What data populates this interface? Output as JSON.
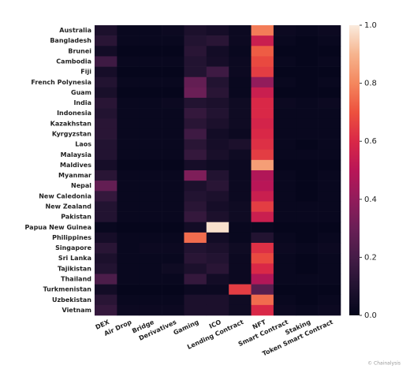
{
  "chart_data": {
    "type": "heatmap",
    "rows": [
      "Australia",
      "Bangladesh",
      "Brunei",
      "Cambodia",
      "Fiji",
      "French Polynesia",
      "Guam",
      "India",
      "Indonesia",
      "Kazakhstan",
      "Kyrgyzstan",
      "Laos",
      "Malaysia",
      "Maldives",
      "Myanmar",
      "Nepal",
      "New Caledonia",
      "New Zealand",
      "Pakistan",
      "Papua New Guinea",
      "Philippines",
      "Singapore",
      "Sri Lanka",
      "Tajikistan",
      "Thailand",
      "Turkmenistan",
      "Uzbekistan",
      "Vietnam"
    ],
    "categories": [
      "DEX",
      "Air Drop",
      "Bridge",
      "Derivatives",
      "Gaming",
      "ICO",
      "Lending Contract",
      "NFT",
      "Smart Contract",
      "Staking",
      "Token Smart Contract"
    ],
    "values": [
      [
        0.08,
        0.02,
        0.02,
        0.03,
        0.08,
        0.06,
        0.03,
        0.78,
        0.03,
        0.02,
        0.03
      ],
      [
        0.12,
        0.02,
        0.02,
        0.02,
        0.1,
        0.12,
        0.03,
        0.55,
        0.02,
        0.01,
        0.02
      ],
      [
        0.05,
        0.01,
        0.01,
        0.01,
        0.12,
        0.05,
        0.02,
        0.72,
        0.01,
        0.01,
        0.01
      ],
      [
        0.18,
        0.02,
        0.02,
        0.02,
        0.1,
        0.06,
        0.03,
        0.68,
        0.02,
        0.01,
        0.02
      ],
      [
        0.06,
        0.01,
        0.01,
        0.01,
        0.1,
        0.18,
        0.03,
        0.65,
        0.01,
        0.01,
        0.01
      ],
      [
        0.1,
        0.02,
        0.02,
        0.02,
        0.28,
        0.1,
        0.02,
        0.4,
        0.02,
        0.01,
        0.02
      ],
      [
        0.07,
        0.01,
        0.01,
        0.01,
        0.3,
        0.12,
        0.02,
        0.55,
        0.01,
        0.01,
        0.01
      ],
      [
        0.12,
        0.02,
        0.02,
        0.03,
        0.1,
        0.08,
        0.04,
        0.6,
        0.03,
        0.02,
        0.03
      ],
      [
        0.1,
        0.02,
        0.02,
        0.02,
        0.15,
        0.1,
        0.04,
        0.6,
        0.02,
        0.02,
        0.02
      ],
      [
        0.12,
        0.02,
        0.02,
        0.02,
        0.12,
        0.08,
        0.04,
        0.58,
        0.02,
        0.02,
        0.02
      ],
      [
        0.12,
        0.02,
        0.02,
        0.02,
        0.18,
        0.05,
        0.03,
        0.6,
        0.02,
        0.02,
        0.02
      ],
      [
        0.1,
        0.02,
        0.02,
        0.02,
        0.12,
        0.06,
        0.08,
        0.62,
        0.02,
        0.01,
        0.02
      ],
      [
        0.1,
        0.02,
        0.02,
        0.02,
        0.15,
        0.07,
        0.04,
        0.65,
        0.02,
        0.02,
        0.02
      ],
      [
        0.06,
        0.01,
        0.01,
        0.01,
        0.06,
        0.04,
        0.03,
        0.85,
        0.01,
        0.01,
        0.01
      ],
      [
        0.12,
        0.02,
        0.02,
        0.02,
        0.35,
        0.1,
        0.03,
        0.48,
        0.02,
        0.01,
        0.02
      ],
      [
        0.28,
        0.02,
        0.02,
        0.02,
        0.08,
        0.12,
        0.03,
        0.5,
        0.02,
        0.01,
        0.02
      ],
      [
        0.15,
        0.02,
        0.02,
        0.02,
        0.1,
        0.08,
        0.03,
        0.55,
        0.02,
        0.01,
        0.02
      ],
      [
        0.1,
        0.02,
        0.02,
        0.02,
        0.12,
        0.06,
        0.04,
        0.65,
        0.02,
        0.02,
        0.02
      ],
      [
        0.1,
        0.02,
        0.02,
        0.02,
        0.15,
        0.08,
        0.04,
        0.55,
        0.02,
        0.02,
        0.02
      ],
      [
        0.02,
        0.01,
        0.01,
        0.01,
        0.05,
        0.98,
        0.02,
        0.02,
        0.01,
        0.01,
        0.01
      ],
      [
        0.06,
        0.02,
        0.02,
        0.02,
        0.75,
        0.05,
        0.02,
        0.1,
        0.02,
        0.01,
        0.02
      ],
      [
        0.12,
        0.02,
        0.03,
        0.03,
        0.1,
        0.08,
        0.04,
        0.62,
        0.03,
        0.02,
        0.03
      ],
      [
        0.08,
        0.02,
        0.02,
        0.02,
        0.12,
        0.1,
        0.03,
        0.68,
        0.02,
        0.01,
        0.02
      ],
      [
        0.1,
        0.02,
        0.02,
        0.04,
        0.08,
        0.12,
        0.03,
        0.6,
        0.02,
        0.01,
        0.02
      ],
      [
        0.22,
        0.02,
        0.02,
        0.02,
        0.15,
        0.05,
        0.03,
        0.48,
        0.02,
        0.02,
        0.02
      ],
      [
        0.05,
        0.01,
        0.01,
        0.01,
        0.03,
        0.03,
        0.65,
        0.25,
        0.01,
        0.01,
        0.01
      ],
      [
        0.12,
        0.02,
        0.02,
        0.02,
        0.08,
        0.08,
        0.04,
        0.75,
        0.02,
        0.01,
        0.02
      ],
      [
        0.15,
        0.03,
        0.03,
        0.03,
        0.08,
        0.08,
        0.04,
        0.6,
        0.03,
        0.02,
        0.03
      ]
    ],
    "colormap": "rocket",
    "clim": [
      0,
      1
    ],
    "cticks": [
      {
        "value": 0,
        "label": "0.0"
      },
      0.2,
      0.4,
      0.6,
      0.8,
      {
        "value": 1,
        "label": "1.0"
      }
    ],
    "credit": "© Chainalysis"
  }
}
